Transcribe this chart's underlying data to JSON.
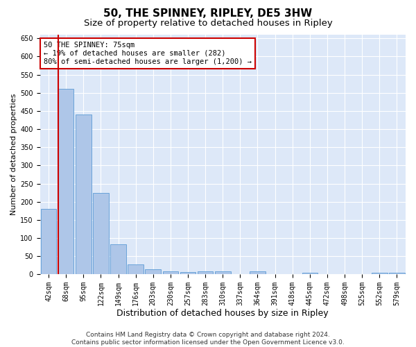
{
  "title": "50, THE SPINNEY, RIPLEY, DE5 3HW",
  "subtitle": "Size of property relative to detached houses in Ripley",
  "xlabel": "Distribution of detached houses by size in Ripley",
  "ylabel": "Number of detached properties",
  "categories": [
    "42sqm",
    "68sqm",
    "95sqm",
    "122sqm",
    "149sqm",
    "176sqm",
    "203sqm",
    "230sqm",
    "257sqm",
    "283sqm",
    "310sqm",
    "337sqm",
    "364sqm",
    "391sqm",
    "418sqm",
    "445sqm",
    "472sqm",
    "498sqm",
    "525sqm",
    "552sqm",
    "579sqm"
  ],
  "values": [
    180,
    510,
    440,
    225,
    83,
    27,
    15,
    8,
    6,
    8,
    8,
    0,
    8,
    0,
    0,
    5,
    0,
    0,
    0,
    5,
    5
  ],
  "bar_color": "#aec6e8",
  "bar_edge_color": "#5b9bd5",
  "vline_color": "#cc0000",
  "vline_x_index": 1,
  "ylim": [
    0,
    660
  ],
  "yticks": [
    0,
    50,
    100,
    150,
    200,
    250,
    300,
    350,
    400,
    450,
    500,
    550,
    600,
    650
  ],
  "annotation_text": "50 THE SPINNEY: 75sqm\n← 19% of detached houses are smaller (282)\n80% of semi-detached houses are larger (1,200) →",
  "annotation_box_color": "#ffffff",
  "annotation_box_edge_color": "#cc0000",
  "background_color": "#dde8f8",
  "grid_color": "#ffffff",
  "footer_text": "Contains HM Land Registry data © Crown copyright and database right 2024.\nContains public sector information licensed under the Open Government Licence v3.0.",
  "title_fontsize": 11,
  "subtitle_fontsize": 9.5,
  "xlabel_fontsize": 9,
  "ylabel_fontsize": 8,
  "tick_fontsize": 7,
  "annotation_fontsize": 7.5,
  "footer_fontsize": 6.5
}
